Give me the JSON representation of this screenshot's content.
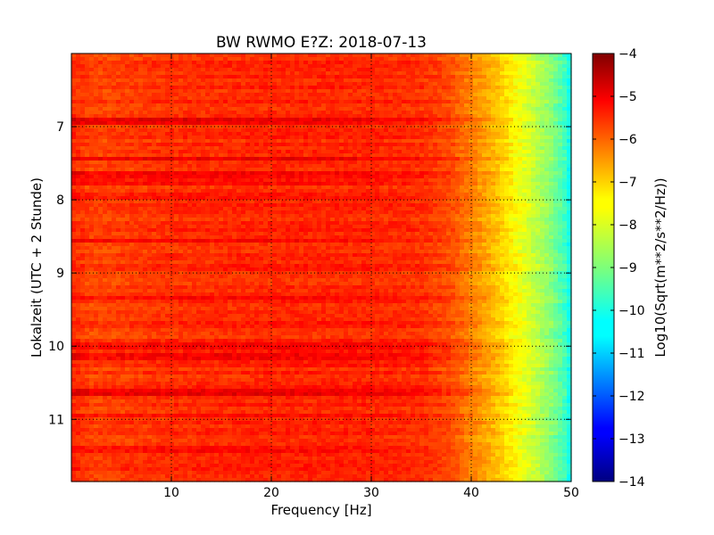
{
  "chart_data": {
    "type": "heatmap",
    "title": "BW RWMO E?Z: 2018-07-13",
    "xlabel": "Frequency [Hz]",
    "ylabel": "Lokalzeit (UTC + 2 Stunde)",
    "xlim": [
      0,
      50
    ],
    "ylim": [
      11.85,
      6.0
    ],
    "x_ticks": [
      10,
      20,
      30,
      40,
      50
    ],
    "y_ticks": [
      7,
      8,
      9,
      10,
      11
    ],
    "grid": true,
    "colormap": "jet",
    "colorbar": {
      "label": "Log10(Sqrt(m**2/s**2/Hz))",
      "range": [
        -14,
        -4
      ],
      "ticks": [
        -4,
        -5,
        -6,
        -7,
        -8,
        -9,
        -10,
        -11,
        -12,
        -13,
        -14
      ]
    },
    "spectral_profile": {
      "frequency_hz": [
        0,
        2,
        10,
        20,
        30,
        35,
        38,
        40,
        42,
        44,
        46,
        48,
        49.5,
        50
      ],
      "log10_amplitude": [
        -5.6,
        -5.9,
        -5.7,
        -5.6,
        -5.6,
        -5.7,
        -6.0,
        -6.5,
        -7.0,
        -7.6,
        -8.2,
        -8.9,
        -9.7,
        -10.3
      ]
    },
    "strong_bands": [
      {
        "time_h": 6.92,
        "delta": 0.9
      },
      {
        "time_h": 7.45,
        "delta": 0.6
      },
      {
        "time_h": 7.65,
        "delta": 0.6
      },
      {
        "time_h": 7.75,
        "delta": 0.55
      },
      {
        "time_h": 7.95,
        "delta": 0.4
      },
      {
        "time_h": 8.55,
        "delta": 0.8
      },
      {
        "time_h": 9.35,
        "delta": 0.4
      },
      {
        "time_h": 10.0,
        "delta": 0.4
      },
      {
        "time_h": 10.15,
        "delta": 0.5
      },
      {
        "time_h": 10.63,
        "delta": 0.65
      },
      {
        "time_h": 10.95,
        "delta": 0.4
      },
      {
        "time_h": 11.42,
        "delta": 0.6
      },
      {
        "time_h": 11.68,
        "delta": 0.3
      }
    ]
  }
}
